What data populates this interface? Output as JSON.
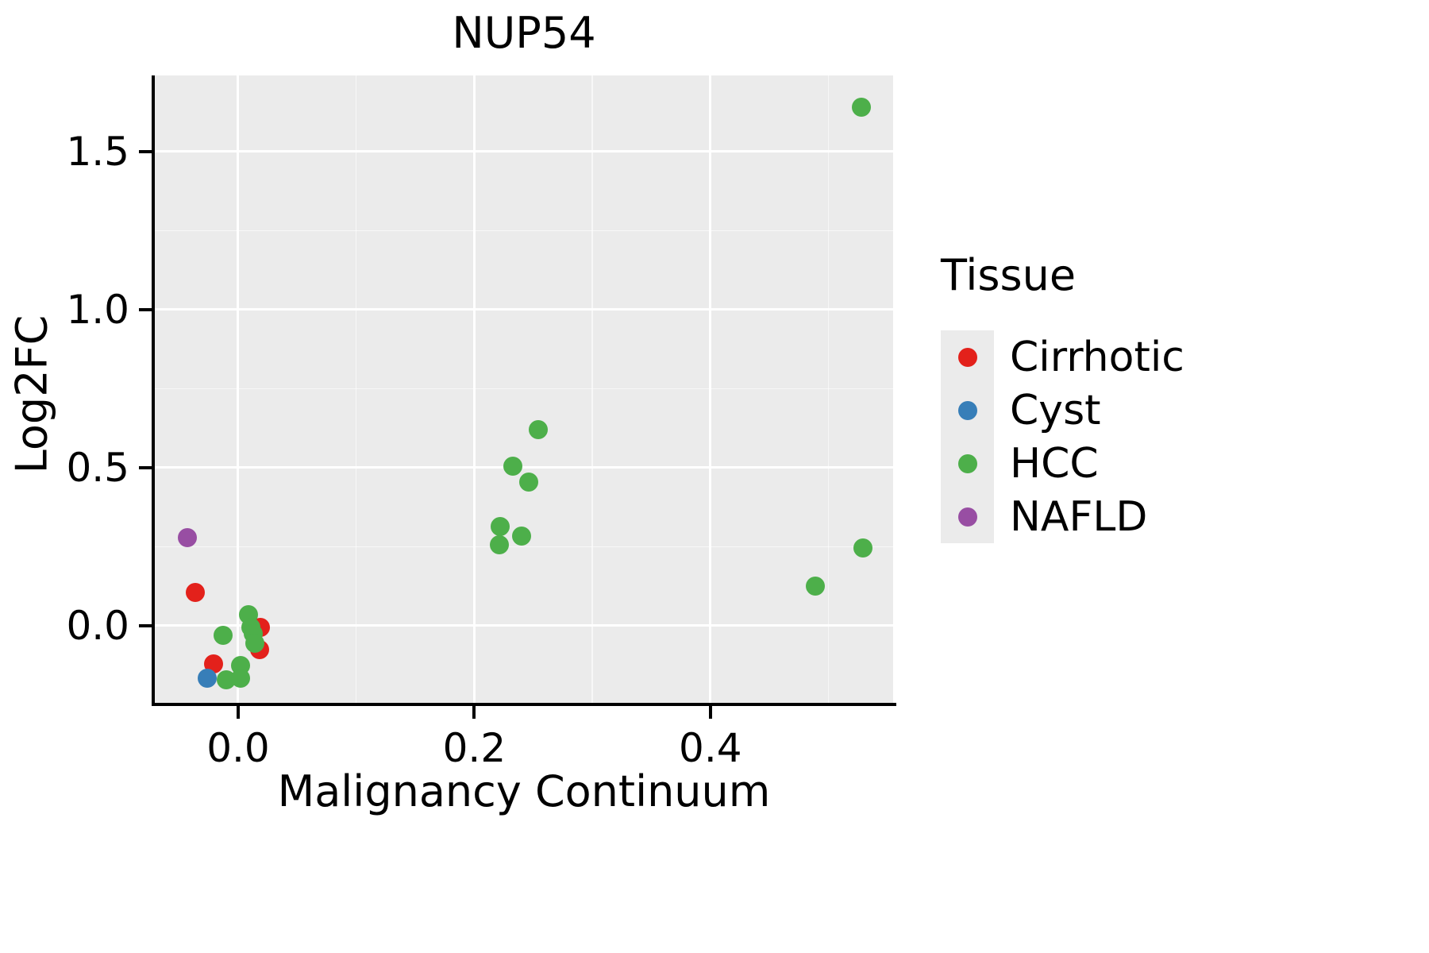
{
  "title": "NUP54",
  "axes": {
    "x_label": "Malignancy Continuum",
    "y_label": "Log2FC"
  },
  "legend": {
    "title": "Tissue",
    "entries": [
      {
        "label": "Cirrhotic",
        "color": "#E3211B"
      },
      {
        "label": "Cyst",
        "color": "#377EB8"
      },
      {
        "label": "HCC",
        "color": "#4DAF4A"
      },
      {
        "label": "NAFLD",
        "color": "#984EA3"
      }
    ]
  },
  "chart_data": {
    "type": "scatter",
    "title": "NUP54",
    "xlabel": "Malignancy Continuum",
    "ylabel": "Log2FC",
    "xlim": [
      -0.0706,
      0.5548
    ],
    "ylim": [
      -0.2437,
      1.741
    ],
    "x_ticks": [
      0.0,
      0.2,
      0.4
    ],
    "x_tick_labels": [
      "0.0",
      "0.2",
      "0.4"
    ],
    "y_ticks": [
      0.0,
      0.5,
      1.0,
      1.5
    ],
    "y_tick_labels": [
      "0.0",
      "0.5",
      "1.0",
      "1.5"
    ],
    "x_minor_ticks": [
      0.1,
      0.3,
      0.5
    ],
    "y_minor_ticks": [
      0.25,
      0.75,
      1.25
    ],
    "grid": true,
    "legend_position": "right",
    "panel_background": "#EBEBEB",
    "series": [
      {
        "name": "Cirrhotic",
        "color": "#E3211B",
        "points": [
          [
            -0.036,
            0.105
          ],
          [
            0.019,
            -0.005
          ],
          [
            0.018,
            -0.075
          ],
          [
            -0.021,
            -0.12
          ]
        ]
      },
      {
        "name": "Cyst",
        "color": "#377EB8",
        "points": [
          [
            -0.026,
            -0.165
          ]
        ]
      },
      {
        "name": "HCC",
        "color": "#4DAF4A",
        "points": [
          [
            0.528,
            1.64
          ],
          [
            0.254,
            0.62
          ],
          [
            0.233,
            0.505
          ],
          [
            0.246,
            0.455
          ],
          [
            0.222,
            0.315
          ],
          [
            0.24,
            0.285
          ],
          [
            0.221,
            0.255
          ],
          [
            0.489,
            0.125
          ],
          [
            0.529,
            0.245
          ],
          [
            -0.013,
            -0.03
          ],
          [
            0.009,
            0.035
          ],
          [
            0.011,
            -0.005
          ],
          [
            0.013,
            -0.025
          ],
          [
            0.014,
            -0.055
          ],
          [
            0.002,
            -0.125
          ],
          [
            -0.01,
            -0.17
          ],
          [
            0.002,
            -0.165
          ]
        ]
      },
      {
        "name": "NAFLD",
        "color": "#984EA3",
        "points": [
          [
            -0.043,
            0.28
          ]
        ]
      }
    ]
  }
}
